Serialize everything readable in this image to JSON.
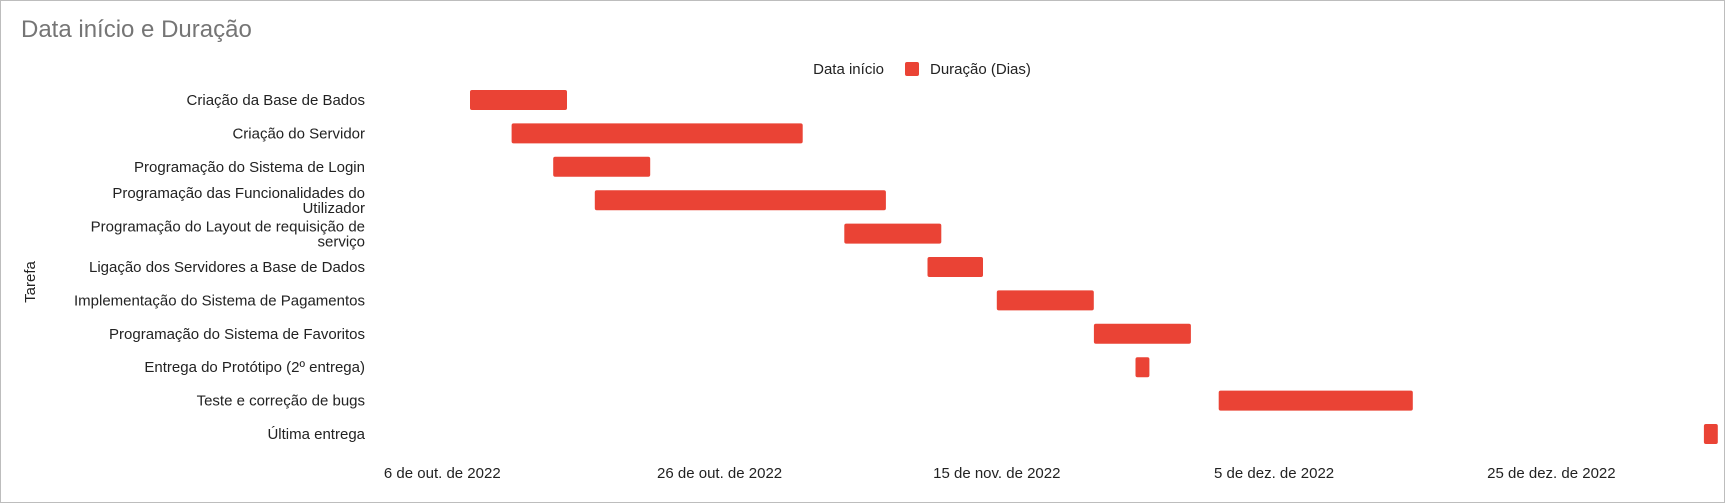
{
  "chart_data": {
    "type": "bar",
    "orientation": "horizontal",
    "stacked": true,
    "title": "Data início e Duração",
    "ylabel": "Tarefa",
    "xlabel": "",
    "x_axis_type": "date",
    "xlim": [
      "2022-10-01",
      "2023-01-04"
    ],
    "x_ticks": [
      {
        "date": "2022-10-06",
        "label": "6 de out. de 2022"
      },
      {
        "date": "2022-10-26",
        "label": "26 de out. de 2022"
      },
      {
        "date": "2022-11-15",
        "label": "15 de nov. de 2022"
      },
      {
        "date": "2022-12-05",
        "label": "5 de dez. de 2022"
      },
      {
        "date": "2022-12-25",
        "label": "25 de dez. de 2022"
      }
    ],
    "legend": {
      "position": "top",
      "entries": [
        "Data início",
        "Duração (Dias)"
      ]
    },
    "grid": false,
    "categories": [
      [
        "Criação da Base de Bados"
      ],
      [
        "Criação do Servidor"
      ],
      [
        "Programação do Sistema de Login"
      ],
      [
        "Programação das Funcionalidades do",
        "Utilizador"
      ],
      [
        "Programação do Layout de requisição de",
        "serviço"
      ],
      [
        "Ligação dos Servidores a Base de Dados"
      ],
      [
        "Implementação do Sistema de Pagamentos"
      ],
      [
        "Programação do Sistema de Favoritos"
      ],
      [
        "Entrega do Protótipo (2º entrega)"
      ],
      [
        "Teste e correção de bugs"
      ],
      [
        "Última entrega"
      ]
    ],
    "series": [
      {
        "name": "Data início",
        "color": "transparent",
        "values": [
          "2022-10-08",
          "2022-10-11",
          "2022-10-14",
          "2022-10-17",
          "2022-11-04",
          "2022-11-10",
          "2022-11-15",
          "2022-11-22",
          "2022-11-25",
          "2022-12-01",
          "2023-01-05"
        ]
      },
      {
        "name": "Duração (Dias)",
        "color": "#ea4335",
        "values": [
          7,
          21,
          7,
          21,
          7,
          4,
          7,
          7,
          1,
          14,
          1
        ]
      }
    ]
  }
}
